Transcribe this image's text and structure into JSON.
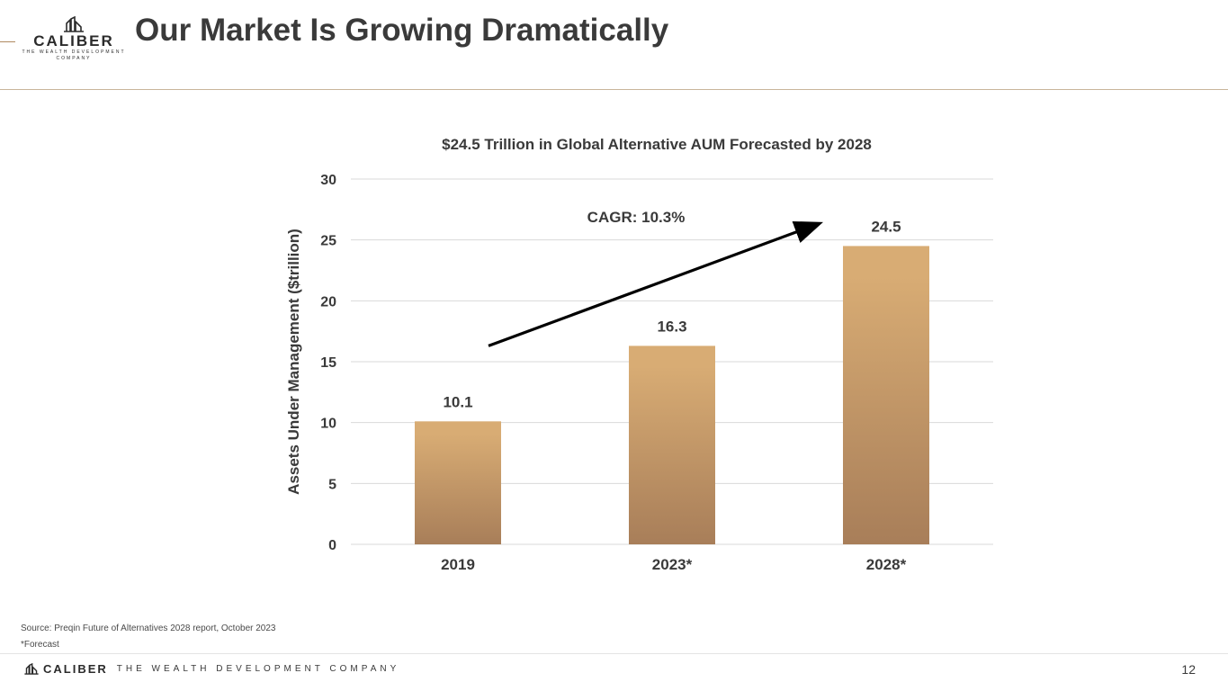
{
  "header": {
    "logo_word": "CALIBER",
    "logo_tagline_line1": "THE WEALTH DEVELOPMENT",
    "logo_tagline_line2": "COMPANY",
    "title": "Our Market Is Growing Dramatically"
  },
  "chart_data": {
    "type": "bar",
    "title": "$24.5 Trillion in Global Alternative AUM Forecasted by 2028",
    "categories": [
      "2019",
      "2023*",
      "2028*"
    ],
    "values": [
      10.1,
      16.3,
      24.5
    ],
    "value_labels": [
      "10.1",
      "16.3",
      "24.5"
    ],
    "xlabel": "",
    "ylabel": "Assets Under Management ($trillion)",
    "ylim": [
      0,
      30
    ],
    "yticks": [
      "0",
      "5",
      "10",
      "15",
      "20",
      "25",
      "30"
    ],
    "grid": true,
    "annotation": "CAGR: 10.3%",
    "colors": {
      "bar_top": "#d8ac74",
      "bar_bottom": "#a87e59",
      "grid": "#d9d9d9",
      "arrow": "#000000"
    }
  },
  "footnotes": {
    "source": "Source: Preqin Future of Alternatives 2028 report, October 2023",
    "forecast": "*Forecast"
  },
  "footer": {
    "brand": "CALIBER",
    "tagline": "THE WEALTH DEVELOPMENT COMPANY",
    "page_number": "12"
  },
  "colors": {
    "accent": "#b08a60",
    "title_text": "#3a3a3a",
    "rule": "#c9b59a"
  }
}
